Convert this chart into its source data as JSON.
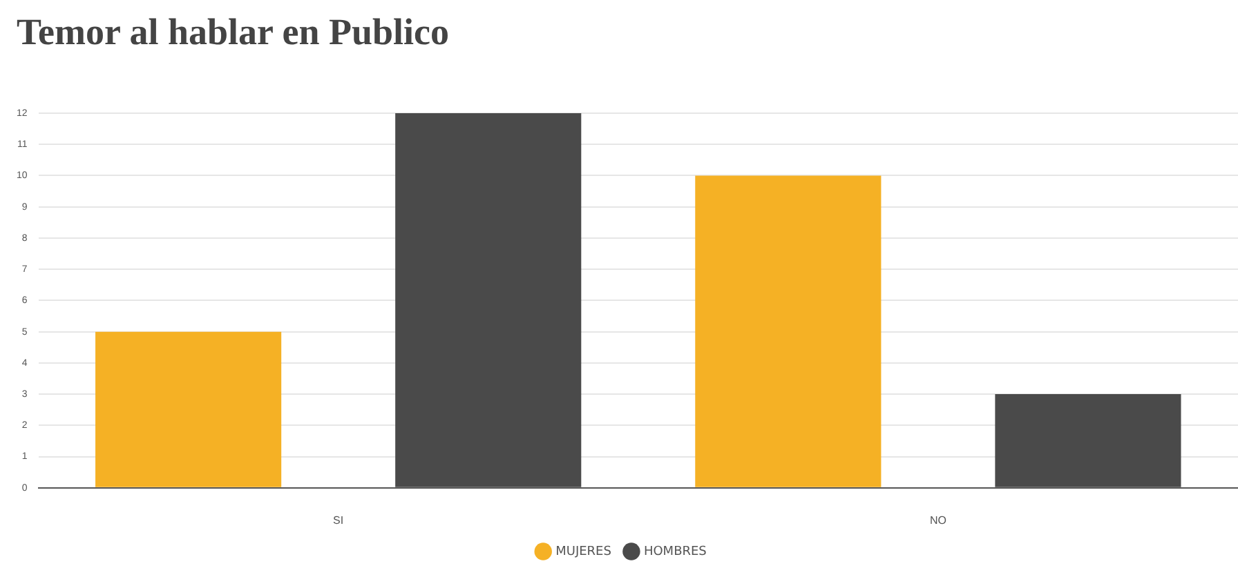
{
  "chart_data": {
    "type": "bar",
    "title": "Temor al hablar en Publico",
    "categories": [
      "SI",
      "NO"
    ],
    "series": [
      {
        "name": "MUJERES",
        "color": "#f5b125",
        "values": [
          5,
          10
        ]
      },
      {
        "name": "HOMBRES",
        "color": "#4a4a4a",
        "values": [
          12,
          3
        ]
      }
    ],
    "ylim": [
      0,
      12
    ],
    "yticks": [
      0,
      1,
      2,
      3,
      4,
      5,
      6,
      7,
      8,
      9,
      10,
      11,
      12
    ],
    "grid": "y",
    "legend": "bottom"
  }
}
